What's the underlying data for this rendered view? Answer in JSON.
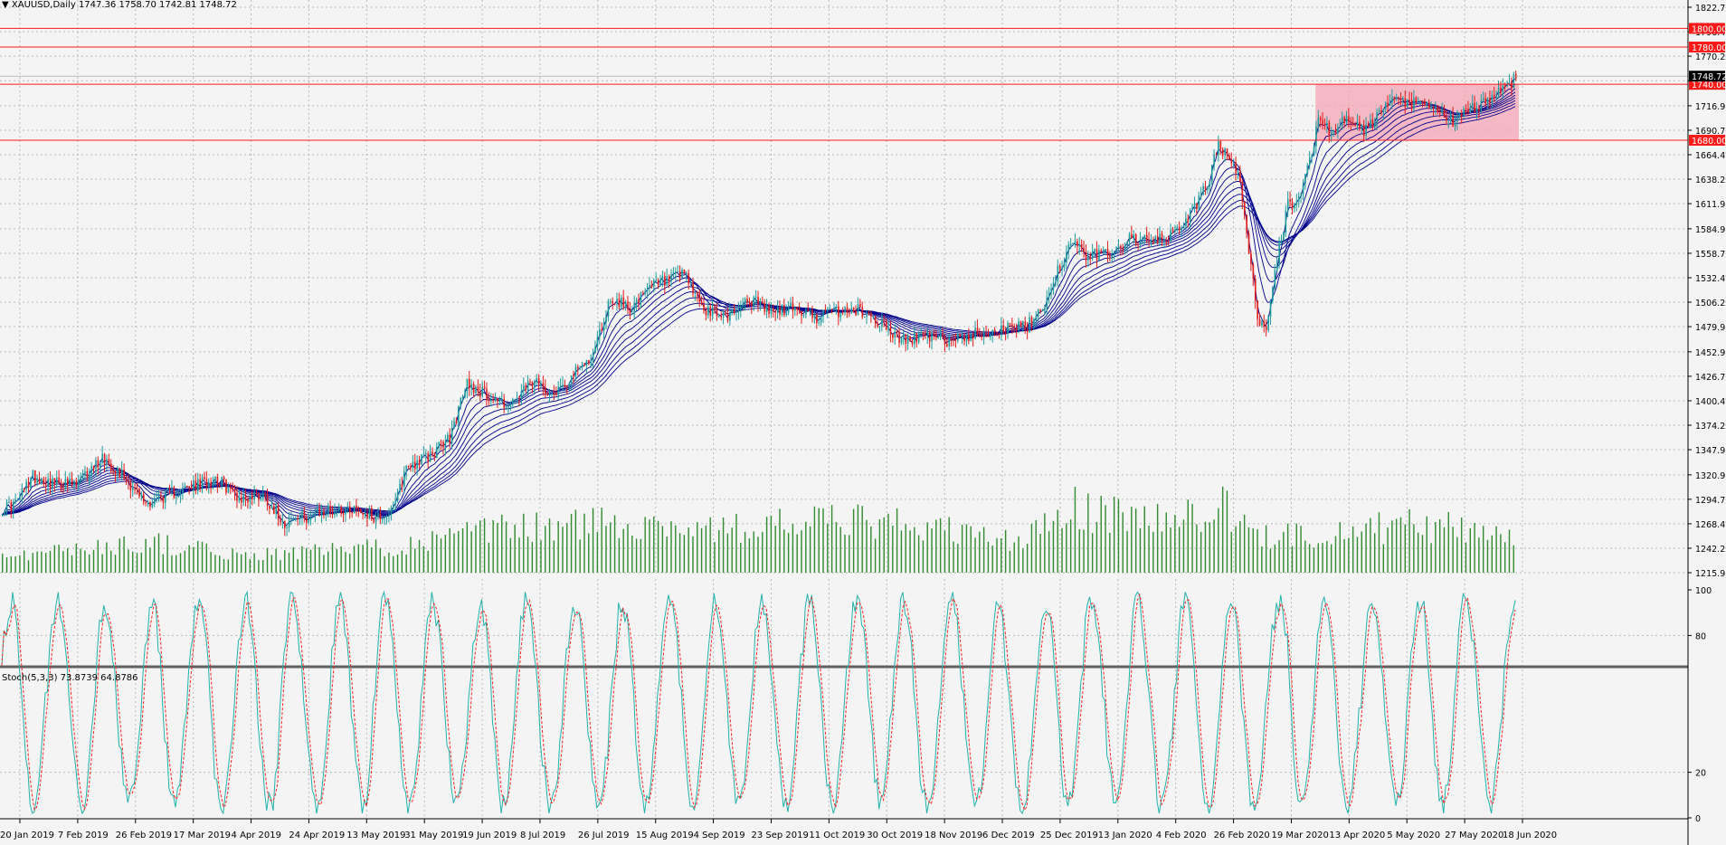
{
  "header": {
    "symbol": "XAUUSD,Daily",
    "ohlc": "1747.36 1758.70 1742.81 1748.72"
  },
  "stoch_header": "Stoch(5,3,3) 73.8739 64.8786",
  "colors": {
    "background": "#f4f4f4",
    "grid": "#b8b8b8",
    "candle_up": "#1c9c9c",
    "candle_down": "#e01b1b",
    "ma": "#00008b",
    "volume": "#2e8b2e",
    "level_line": "#ff1a1a",
    "zone_fill": "#f4a6b6",
    "stoch_main": "#20b2aa",
    "stoch_signal": "#ff2020"
  },
  "chart_data": {
    "type": "candlestick",
    "ylim": [
      1215.95,
      1822.7
    ],
    "y_ticks": [
      "1822.70",
      "1796.45",
      "1770.20",
      "1743.70",
      "1716.95",
      "1690.70",
      "1664.45",
      "1638.20",
      "1611.95",
      "1584.95",
      "1558.70",
      "1532.45",
      "1506.20",
      "1479.95",
      "1452.95",
      "1426.70",
      "1400.45",
      "1374.20",
      "1347.95",
      "1320.95",
      "1294.70",
      "1268.45",
      "1242.20",
      "1215.95"
    ],
    "x_ticks": [
      "20 Jan 2019",
      "7 Feb 2019",
      "26 Feb 2019",
      "17 Mar 2019",
      "4 Apr 2019",
      "24 Apr 2019",
      "13 May 2019",
      "31 May 2019",
      "19 Jun 2019",
      "8 Jul 2019",
      "26 Jul 2019",
      "15 Aug 2019",
      "4 Sep 2019",
      "23 Sep 2019",
      "11 Oct 2019",
      "30 Oct 2019",
      "18 Nov 2019",
      "6 Dec 2019",
      "25 Dec 2019",
      "13 Jan 2020",
      "4 Feb 2020",
      "26 Feb 2020",
      "19 Mar 2020",
      "13 Apr 2020",
      "5 May 2020",
      "27 May 2020",
      "18 Jun 2020"
    ],
    "price_path": [
      [
        0,
        1285
      ],
      [
        6,
        1290
      ],
      [
        14,
        1320
      ],
      [
        24,
        1312
      ],
      [
        34,
        1310
      ],
      [
        46,
        1340
      ],
      [
        56,
        1320
      ],
      [
        66,
        1290
      ],
      [
        76,
        1300
      ],
      [
        88,
        1308
      ],
      [
        98,
        1318
      ],
      [
        110,
        1295
      ],
      [
        120,
        1300
      ],
      [
        130,
        1270
      ],
      [
        140,
        1276
      ],
      [
        152,
        1283
      ],
      [
        162,
        1286
      ],
      [
        172,
        1275
      ],
      [
        180,
        1283
      ],
      [
        186,
        1330
      ],
      [
        196,
        1340
      ],
      [
        206,
        1360
      ],
      [
        214,
        1420
      ],
      [
        224,
        1405
      ],
      [
        234,
        1395
      ],
      [
        244,
        1420
      ],
      [
        254,
        1410
      ],
      [
        264,
        1430
      ],
      [
        272,
        1450
      ],
      [
        280,
        1510
      ],
      [
        290,
        1500
      ],
      [
        300,
        1525
      ],
      [
        314,
        1535
      ],
      [
        324,
        1495
      ],
      [
        334,
        1492
      ],
      [
        344,
        1510
      ],
      [
        354,
        1495
      ],
      [
        364,
        1500
      ],
      [
        374,
        1490
      ],
      [
        384,
        1496
      ],
      [
        394,
        1498
      ],
      [
        404,
        1485
      ],
      [
        414,
        1465
      ],
      [
        424,
        1470
      ],
      [
        434,
        1465
      ],
      [
        444,
        1470
      ],
      [
        454,
        1475
      ],
      [
        464,
        1478
      ],
      [
        472,
        1480
      ],
      [
        480,
        1505
      ],
      [
        486,
        1540
      ],
      [
        492,
        1570
      ],
      [
        500,
        1555
      ],
      [
        510,
        1560
      ],
      [
        520,
        1575
      ],
      [
        530,
        1570
      ],
      [
        540,
        1580
      ],
      [
        550,
        1610
      ],
      [
        556,
        1640
      ],
      [
        560,
        1680
      ],
      [
        564,
        1660
      ],
      [
        570,
        1640
      ],
      [
        574,
        1560
      ],
      [
        578,
        1490
      ],
      [
        582,
        1480
      ],
      [
        586,
        1540
      ],
      [
        592,
        1610
      ],
      [
        598,
        1620
      ],
      [
        602,
        1660
      ],
      [
        606,
        1700
      ],
      [
        612,
        1690
      ],
      [
        618,
        1700
      ],
      [
        628,
        1690
      ],
      [
        638,
        1720
      ],
      [
        648,
        1720
      ],
      [
        658,
        1715
      ],
      [
        668,
        1700
      ],
      [
        678,
        1715
      ],
      [
        688,
        1730
      ],
      [
        694,
        1740
      ],
      [
        697,
        1748.72
      ]
    ],
    "n_bars": 698,
    "volume_path": [
      [
        0,
        20
      ],
      [
        70,
        35
      ],
      [
        110,
        20
      ],
      [
        180,
        30
      ],
      [
        230,
        50
      ],
      [
        290,
        60
      ],
      [
        330,
        50
      ],
      [
        380,
        60
      ],
      [
        420,
        55
      ],
      [
        470,
        35
      ],
      [
        490,
        75
      ],
      [
        540,
        60
      ],
      [
        560,
        80
      ],
      [
        580,
        40
      ],
      [
        620,
        50
      ],
      [
        650,
        55
      ],
      [
        697,
        45
      ]
    ],
    "ma_offsets": [
      0,
      6,
      12,
      18,
      25,
      32,
      40,
      48,
      56
    ],
    "levels": [
      {
        "price": 1800.0,
        "label": "1800.00"
      },
      {
        "price": 1780.0,
        "label": "1780.00"
      },
      {
        "price": 1740.0,
        "label": "1740.00"
      },
      {
        "price": 1680.0,
        "label": "1680.00"
      }
    ],
    "zone": {
      "bar_from": 605,
      "bar_to": 697,
      "price_from": 1680,
      "price_to": 1740
    },
    "current_price": "1748.72",
    "stoch_ticks": [
      "100",
      "80",
      "20",
      "0"
    ],
    "stoch": {
      "main": 73.8739,
      "signal": 64.8786
    }
  }
}
